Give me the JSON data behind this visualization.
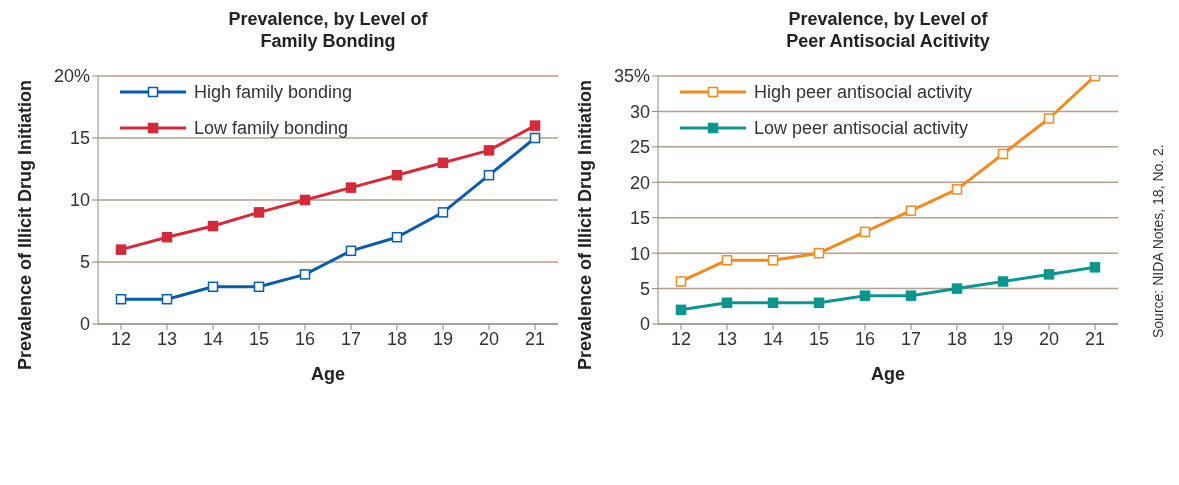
{
  "chart_data": [
    {
      "type": "line",
      "title": "Prevalence, by Level of Family Bonding",
      "xlabel": "Age",
      "ylabel": "Prevalence of Illicit Drug Initiation",
      "x": [
        12,
        13,
        14,
        15,
        16,
        17,
        18,
        19,
        20,
        21
      ],
      "series": [
        {
          "name": "High family bonding",
          "color": "#0a5ca8",
          "values": [
            2,
            2,
            3,
            3,
            4,
            5.9,
            7,
            9,
            12,
            15
          ]
        },
        {
          "name": "Low family bonding",
          "color": "#d42a3a",
          "values": [
            6,
            7,
            7.9,
            9,
            10,
            11,
            12,
            13,
            14,
            16
          ]
        }
      ],
      "xlim": [
        11.5,
        21.5
      ],
      "xticks": [
        12,
        13,
        14,
        15,
        16,
        17,
        18,
        19,
        20,
        21
      ],
      "ylim": [
        0,
        20
      ],
      "yticks": [
        0,
        5,
        10,
        15,
        {
          "value": 20,
          "label": "20%"
        }
      ],
      "grid": "y",
      "legend": "top left",
      "marker": "square"
    },
    {
      "type": "line",
      "title": "Prevalence, by Level of Peer Antisocial Acitivity",
      "xlabel": "Age",
      "ylabel": "Prevalence of Illicit Drug Initiation",
      "x": [
        12,
        13,
        14,
        15,
        16,
        17,
        18,
        19,
        20,
        21
      ],
      "series": [
        {
          "name": "High peer antisocial activity",
          "color": "#f28a1e",
          "values": [
            6,
            9,
            9,
            10,
            13,
            16,
            19,
            24,
            29,
            35
          ]
        },
        {
          "name": "Low peer antisocial activity",
          "color": "#0d9590",
          "values": [
            2,
            3,
            3,
            3,
            4,
            4,
            5,
            6,
            7,
            8
          ]
        }
      ],
      "xlim": [
        11.5,
        21.5
      ],
      "xticks": [
        12,
        13,
        14,
        15,
        16,
        17,
        18,
        19,
        20,
        21
      ],
      "ylim": [
        0,
        35
      ],
      "yticks": [
        0,
        5,
        10,
        15,
        20,
        25,
        30,
        {
          "value": 35,
          "label": "35%"
        }
      ],
      "grid": "y",
      "legend": "top left",
      "marker": "square",
      "annotations": [
        "Source: NIDA Notes, 18, No. 2."
      ]
    }
  ]
}
